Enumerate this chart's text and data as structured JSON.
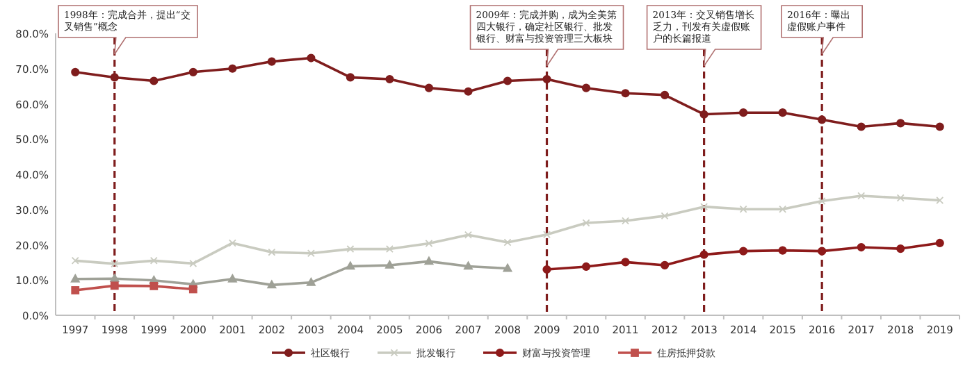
{
  "chart_data": {
    "type": "line",
    "x": [
      1997,
      1998,
      1999,
      2000,
      2001,
      2002,
      2003,
      2004,
      2005,
      2006,
      2007,
      2008,
      2009,
      2010,
      2011,
      2012,
      2013,
      2014,
      2015,
      2016,
      2017,
      2018,
      2019
    ],
    "xlim": [
      1996.5,
      2019.5
    ],
    "xticks": [
      1997,
      1998,
      1999,
      2000,
      2001,
      2002,
      2003,
      2004,
      2005,
      2006,
      2007,
      2008,
      2009,
      2010,
      2011,
      2012,
      2013,
      2014,
      2015,
      2016,
      2017,
      2018,
      2019
    ],
    "ylim": [
      0,
      80
    ],
    "yticks": [
      {
        "value": 0,
        "label": "0.0%"
      },
      {
        "value": 10,
        "label": "10.0%"
      },
      {
        "value": 20,
        "label": "20.0%"
      },
      {
        "value": 30,
        "label": "30.0%"
      },
      {
        "value": 40,
        "label": "40.0%"
      },
      {
        "value": 50,
        "label": "50.0%"
      },
      {
        "value": 60,
        "label": "60.0%"
      },
      {
        "value": 70,
        "label": "70.0%"
      },
      {
        "value": 80,
        "label": "80.0%"
      }
    ],
    "series": [
      {
        "name": "社区银行",
        "color": "#7f1d1d",
        "marker": "circle",
        "values": [
          69,
          67.5,
          66.5,
          69,
          70,
          72,
          73,
          67.5,
          67,
          64.5,
          63.5,
          66.5,
          67,
          64.5,
          63,
          62.5,
          57,
          57.5,
          57.5,
          55.5,
          53.5,
          54.5,
          53.5
        ]
      },
      {
        "name": "批发银行",
        "color": "#c9cbc0",
        "marker": "cross",
        "values": [
          15.5,
          14.6,
          15.5,
          14.7,
          20.5,
          17.9,
          17.6,
          18.8,
          18.8,
          20.4,
          22.8,
          20.7,
          22.9,
          26.2,
          26.8,
          28.2,
          30.8,
          30.1,
          30.1,
          32.4,
          33.9,
          33.3,
          32.6
        ]
      },
      {
        "name": "财富与投资管理",
        "color": "#8e1a1a",
        "marker": "circle",
        "values": [
          null,
          null,
          null,
          null,
          null,
          null,
          null,
          null,
          null,
          null,
          null,
          null,
          13,
          13.8,
          15.1,
          14.2,
          17.2,
          18.2,
          18.4,
          18.2,
          19.3,
          18.9,
          20.5
        ]
      },
      {
        "color": "#9fa197",
        "marker": "triangle",
        "values": [
          10.3,
          10.4,
          9.9,
          8.8,
          10.3,
          8.6,
          9.3,
          13.9,
          14.2,
          15.3,
          13.9,
          13.3,
          null,
          null,
          null,
          null,
          null,
          null,
          null,
          null,
          null,
          null,
          null
        ]
      },
      {
        "name": "住房抵押贷款",
        "color": "#c0504d",
        "marker": "square",
        "values": [
          7.1,
          8.4,
          8.3,
          7.4,
          null,
          null,
          null,
          null,
          null,
          null,
          null,
          null,
          null,
          null,
          null,
          null,
          null,
          null,
          null,
          null,
          null,
          null,
          null
        ]
      }
    ],
    "ref_lines": [
      {
        "axis": "x",
        "value": 1998,
        "label": "1998年：完成合并，提出“交叉销售”概念",
        "color": "#7f1d1d",
        "line_style": "dashed"
      },
      {
        "axis": "x",
        "value": 2009,
        "label": "2009年：完成并购，成为全美第四大银行，确定社区银行、批发银行、财富与投资管理三大板块",
        "color": "#7f1d1d",
        "line_style": "dashed"
      },
      {
        "axis": "x",
        "value": 2013,
        "label": "2013年：交叉销售增长乏力，刊发有关虚假账户的长篇报道",
        "color": "#7f1d1d",
        "line_style": "dashed"
      },
      {
        "axis": "x",
        "value": 2016,
        "label": "2016年：曝出虚假账户事件",
        "color": "#7f1d1d",
        "line_style": "dashed"
      }
    ],
    "grid": false,
    "legend": "bottom",
    "line_style": "solid"
  }
}
